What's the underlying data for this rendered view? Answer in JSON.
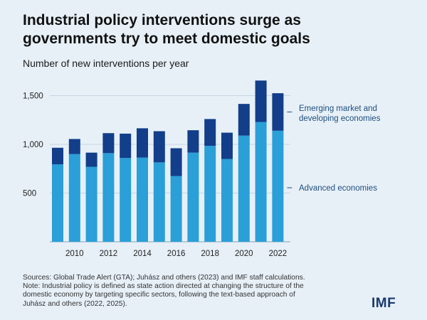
{
  "title_line1": "Industrial policy interventions surge as",
  "title_line2": "governments try to meet domestic goals",
  "subtitle": "Number of new interventions per year",
  "colors": {
    "emerging": "#123e8a",
    "advanced": "#2a9fd8",
    "grid": "#c7d6e2",
    "background": "#e7f0f7"
  },
  "chart_data": {
    "type": "bar",
    "stacked": true,
    "categories": [
      "2009",
      "2010",
      "2011",
      "2012",
      "2013",
      "2014",
      "2015",
      "2016",
      "2017",
      "2018",
      "2019",
      "2020",
      "2021",
      "2022"
    ],
    "series": [
      {
        "name": "Advanced economies",
        "values": [
          795,
          900,
          770,
          910,
          860,
          865,
          815,
          675,
          915,
          985,
          850,
          1090,
          1230,
          1140
        ]
      },
      {
        "name": "Emerging market and developing economies",
        "values": [
          170,
          155,
          145,
          205,
          250,
          300,
          320,
          285,
          230,
          275,
          270,
          325,
          425,
          385
        ]
      }
    ],
    "ylim": [
      0,
      1700
    ],
    "yticks": [
      500,
      1000,
      1500
    ],
    "ytick_labels": [
      "500",
      "1,000",
      "1,500"
    ],
    "xtick_labels": [
      "2010",
      "2012",
      "2014",
      "2016",
      "2018",
      "2020",
      "2022"
    ],
    "ylabel": "Number of new interventions per year",
    "grid": true,
    "legend": [
      {
        "lines": [
          "Emerging market and",
          "developing economies"
        ]
      },
      {
        "lines": [
          "Advanced economies"
        ]
      }
    ]
  },
  "footnote": [
    "Sources: Global Trade Alert (GTA); Juhász and others (2023) and IMF staff calculations.",
    "Note: Industrial policy is defined as state action directed at changing the structure of the",
    "domestic economy by targeting specific sectors, following the text-based approach of",
    "Juhász and others (2022, 2025)."
  ],
  "logo": "IMF"
}
